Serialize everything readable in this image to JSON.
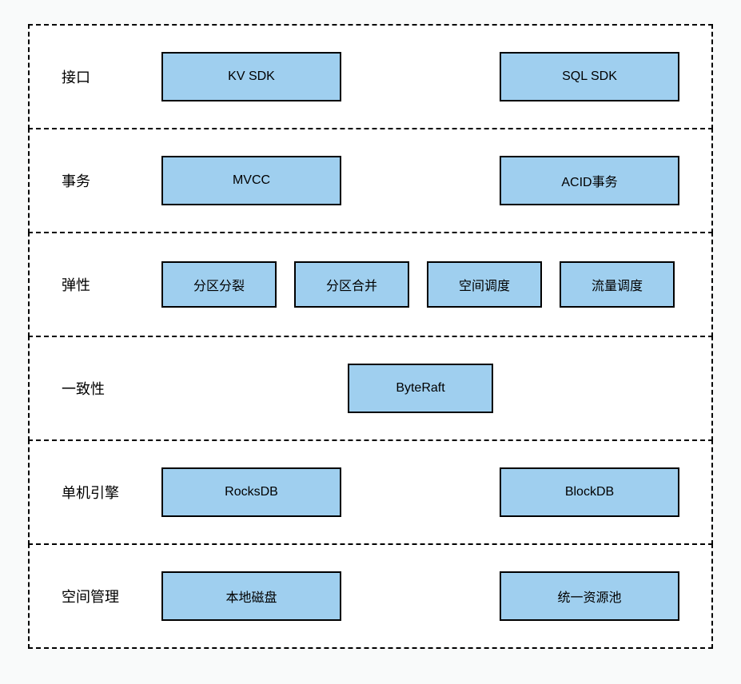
{
  "diagram": {
    "background_color": "#f9fafa",
    "row_background": "#ffffff",
    "border_color": "#000000",
    "border_style": "dashed",
    "border_width": 2,
    "box_fill": "#9fcfef",
    "box_border_color": "#000000",
    "box_border_width": 2,
    "label_fontsize": 18,
    "box_fontsize": 16,
    "font_family": "Helvetica Neue / PingFang SC / Microsoft YaHei / Arial",
    "text_color": "#000000",
    "layers": [
      {
        "label": "接口",
        "layout": "two-wide",
        "box_size": "wide",
        "items": [
          "KV SDK",
          "SQL SDK"
        ]
      },
      {
        "label": "事务",
        "layout": "two-wide",
        "box_size": "wide",
        "items": [
          "MVCC",
          "ACID事务"
        ]
      },
      {
        "label": "弹性",
        "layout": "four-wide",
        "box_size": "narrow",
        "items": [
          "分区分裂",
          "分区合并",
          "空间调度",
          "流量调度"
        ]
      },
      {
        "label": "一致性",
        "layout": "one-center",
        "box_size": "mid",
        "items": [
          "ByteRaft"
        ]
      },
      {
        "label": "单机引擎",
        "layout": "two-wide",
        "box_size": "wide",
        "items": [
          "RocksDB",
          "BlockDB"
        ]
      },
      {
        "label": "空间管理",
        "layout": "two-wide",
        "box_size": "wide",
        "items": [
          "本地磁盘",
          "统一资源池"
        ]
      }
    ]
  }
}
